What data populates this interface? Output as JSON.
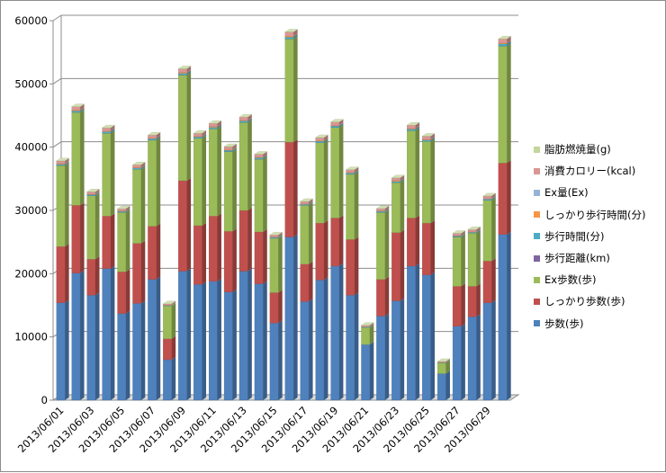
{
  "chart_data": {
    "type": "bar",
    "stacked": true,
    "style": "3d-column",
    "categories": [
      "2013/06/01",
      "2013/06/02",
      "2013/06/03",
      "2013/06/04",
      "2013/06/05",
      "2013/06/06",
      "2013/06/07",
      "2013/06/08",
      "2013/06/09",
      "2013/06/10",
      "2013/06/11",
      "2013/06/12",
      "2013/06/13",
      "2013/06/14",
      "2013/06/15",
      "2013/06/16",
      "2013/06/17",
      "2013/06/18",
      "2013/06/19",
      "2013/06/20",
      "2013/06/21",
      "2013/06/22",
      "2013/06/23",
      "2013/06/24",
      "2013/06/25",
      "2013/06/26",
      "2013/06/27",
      "2013/06/28",
      "2013/06/29",
      "2013/06/30"
    ],
    "x_tick_labels": [
      "2013/06/01",
      "2013/06/03",
      "2013/06/05",
      "2013/06/07",
      "2013/06/09",
      "2013/06/11",
      "2013/06/13",
      "2013/06/15",
      "2013/06/17",
      "2013/06/19",
      "2013/06/21",
      "2013/06/23",
      "2013/06/25",
      "2013/06/27",
      "2013/06/29"
    ],
    "y_ticks": [
      "0",
      "10000",
      "20000",
      "30000",
      "40000",
      "50000",
      "60000"
    ],
    "ylim": [
      0,
      60000
    ],
    "grid": true,
    "legend_position": "right",
    "series": [
      {
        "name": "歩数(歩)",
        "color": "#4f81bd",
        "values": [
          15400,
          20100,
          16600,
          20800,
          13700,
          15300,
          19100,
          6400,
          20400,
          18300,
          18800,
          17100,
          20400,
          18400,
          12200,
          25800,
          15600,
          19000,
          21200,
          16600,
          8800,
          13300,
          15700,
          21200,
          19800,
          4200,
          11700,
          13200,
          15400,
          26200
        ]
      },
      {
        "name": "しっかり歩数(歩)",
        "color": "#c0504d",
        "values": [
          8900,
          10700,
          5700,
          8300,
          6600,
          9500,
          8400,
          3300,
          14300,
          9300,
          10300,
          9600,
          9600,
          8200,
          4800,
          15000,
          5900,
          9000,
          7600,
          8800,
          0,
          5800,
          10800,
          7600,
          8200,
          0,
          6300,
          4800,
          6600,
          11300
        ]
      },
      {
        "name": "Ex歩数(歩)",
        "color": "#9bbb59",
        "values": [
          12800,
          14700,
          10000,
          13100,
          9400,
          11700,
          13600,
          5200,
          16700,
          13800,
          13800,
          12600,
          13900,
          11500,
          8600,
          16300,
          9300,
          12700,
          14300,
          10300,
          2700,
          10600,
          7900,
          13800,
          12900,
          1700,
          7800,
          8400,
          9600,
          18500
        ]
      },
      {
        "name": "歩行距離(km)",
        "color": "#8064a2",
        "values": [
          10,
          14,
          10,
          13,
          9,
          11,
          12,
          4,
          14,
          12,
          13,
          12,
          13,
          12,
          8,
          17,
          10,
          12,
          13,
          11,
          5,
          9,
          11,
          13,
          12,
          3,
          8,
          9,
          10,
          17
        ]
      },
      {
        "name": "歩行時間(分)",
        "color": "#4bacc6",
        "values": [
          200,
          240,
          180,
          240,
          150,
          190,
          230,
          80,
          260,
          210,
          230,
          210,
          240,
          220,
          140,
          300,
          170,
          230,
          250,
          200,
          90,
          160,
          190,
          250,
          230,
          60,
          150,
          160,
          190,
          320
        ]
      },
      {
        "name": "しっかり歩行時間(分)",
        "color": "#f79646",
        "values": [
          90,
          110,
          60,
          90,
          70,
          100,
          90,
          40,
          140,
          100,
          110,
          100,
          100,
          90,
          50,
          150,
          60,
          90,
          80,
          90,
          10,
          60,
          110,
          80,
          90,
          0,
          70,
          50,
          70,
          120
        ]
      },
      {
        "name": "Ex量(Ex)",
        "color": "#95b3d7",
        "values": [
          3,
          4,
          2,
          3,
          2,
          3,
          3,
          1,
          5,
          3,
          3,
          3,
          3,
          3,
          2,
          5,
          2,
          3,
          3,
          3,
          0,
          2,
          3,
          3,
          3,
          0,
          2,
          2,
          2,
          4
        ]
      },
      {
        "name": "消費カロリー(kcal)",
        "color": "#da9694",
        "values": [
          420,
          520,
          380,
          500,
          320,
          400,
          470,
          200,
          560,
          460,
          480,
          450,
          500,
          450,
          320,
          630,
          370,
          470,
          520,
          420,
          230,
          350,
          420,
          520,
          490,
          150,
          330,
          350,
          400,
          640
        ]
      },
      {
        "name": "脂肪燃焼量(g)",
        "color": "#c3d69b",
        "values": [
          18,
          23,
          16,
          22,
          14,
          17,
          20,
          7,
          24,
          20,
          21,
          19,
          21,
          20,
          13,
          27,
          16,
          20,
          22,
          18,
          9,
          15,
          18,
          22,
          21,
          5,
          14,
          15,
          17,
          28
        ]
      }
    ],
    "legend_order": [
      "脂肪燃焼量(g)",
      "消費カロリー(kcal)",
      "Ex量(Ex)",
      "しっかり歩行時間(分)",
      "歩行時間(分)",
      "歩行距離(km)",
      "Ex歩数(歩)",
      "しっかり歩数(歩)",
      "歩数(歩)"
    ],
    "title": "",
    "xlabel": "",
    "ylabel": ""
  }
}
